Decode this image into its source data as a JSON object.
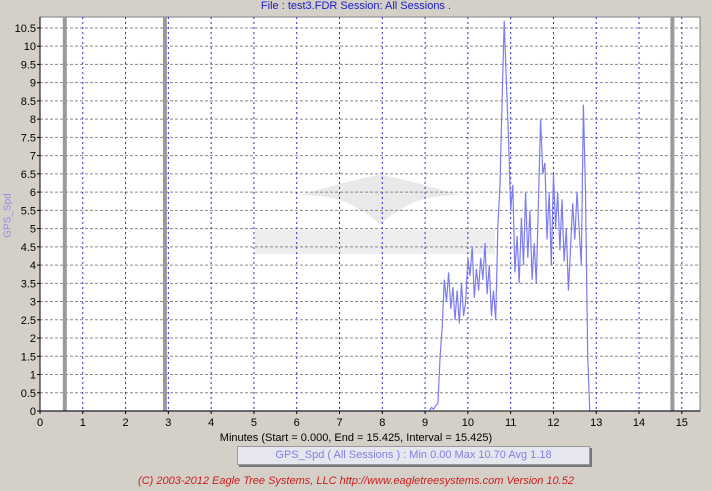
{
  "header": {
    "title": "File : test3.FDR    Session: All Sessions ."
  },
  "chart_data": {
    "type": "line",
    "xlabel": "Minutes (Start = 0.000,  End = 15.425,  Interval =  15.425)",
    "ylabel": "GPS_Spd",
    "xlim": [
      0,
      15.425
    ],
    "ylim": [
      0,
      10.8
    ],
    "x_ticks": [
      0,
      1,
      2,
      3,
      4,
      5,
      6,
      7,
      8,
      9,
      10,
      11,
      12,
      13,
      14,
      15
    ],
    "y_ticks": [
      0,
      0.5,
      1,
      1.5,
      2,
      2.5,
      3,
      3.5,
      4,
      4.5,
      5,
      5.5,
      6,
      6.5,
      7,
      7.5,
      8,
      8.5,
      9,
      9.5,
      10,
      10.5
    ],
    "grid": true,
    "session_markers_x": [
      0.58,
      2.92,
      14.78
    ],
    "series": [
      {
        "name": "GPS_Spd",
        "color": "#7c7cf0",
        "x": [
          0,
          9.1,
          9.15,
          9.2,
          9.25,
          9.3,
          9.35,
          9.4,
          9.45,
          9.5,
          9.55,
          9.6,
          9.65,
          9.7,
          9.75,
          9.8,
          9.85,
          9.9,
          9.95,
          10.0,
          10.05,
          10.1,
          10.15,
          10.2,
          10.25,
          10.3,
          10.35,
          10.4,
          10.45,
          10.5,
          10.55,
          10.6,
          10.65,
          10.7,
          10.75,
          10.8,
          10.85,
          10.9,
          10.95,
          11.0,
          11.05,
          11.1,
          11.15,
          11.2,
          11.25,
          11.3,
          11.35,
          11.4,
          11.45,
          11.5,
          11.55,
          11.6,
          11.65,
          11.7,
          11.75,
          11.8,
          11.85,
          11.9,
          11.95,
          12.0,
          12.05,
          12.1,
          12.15,
          12.2,
          12.25,
          12.3,
          12.35,
          12.4,
          12.45,
          12.5,
          12.55,
          12.6,
          12.65,
          12.7,
          12.75,
          12.8,
          12.85,
          12.9,
          12.95,
          13.0,
          13.05,
          13.1,
          13.15,
          13.2,
          13.25,
          13.3,
          15.425
        ],
        "values": [
          0,
          0,
          0.1,
          0.05,
          0.15,
          0.2,
          1.5,
          2.3,
          3.6,
          3.0,
          3.8,
          2.8,
          3.4,
          2.5,
          3.3,
          2.4,
          3.5,
          2.6,
          3.0,
          4.2,
          3.7,
          4.5,
          3.1,
          3.9,
          3.3,
          4.2,
          3.6,
          4.6,
          3.2,
          4.0,
          2.6,
          3.3,
          2.5,
          5.0,
          6.2,
          8.5,
          10.7,
          9.0,
          7.5,
          5.5,
          6.2,
          3.8,
          4.8,
          3.5,
          5.3,
          4.0,
          6.0,
          4.2,
          5.5,
          3.6,
          4.6,
          3.5,
          5.8,
          8.0,
          6.5,
          6.8,
          4.7,
          6.0,
          4.0,
          6.5,
          5.0,
          6.0,
          4.4,
          5.8,
          4.1,
          5.0,
          3.3,
          4.5,
          5.7,
          4.7,
          6.0,
          5.0,
          4.0,
          8.4,
          6.0,
          1.5,
          0.0,
          0.0,
          0.0,
          0.0,
          0.0,
          0.0,
          0.0,
          0.0,
          0.0,
          0.0,
          0.0
        ]
      }
    ]
  },
  "stats_box": {
    "text": "GPS_Spd ( All Sessions ) : Min 0.00    Max 10.70    Avg 1.18"
  },
  "footer": {
    "copyright": "(C) 2003-2012 Eagle Tree Systems, LLC  http://www.eagletreesystems.com  Version 10.52"
  }
}
